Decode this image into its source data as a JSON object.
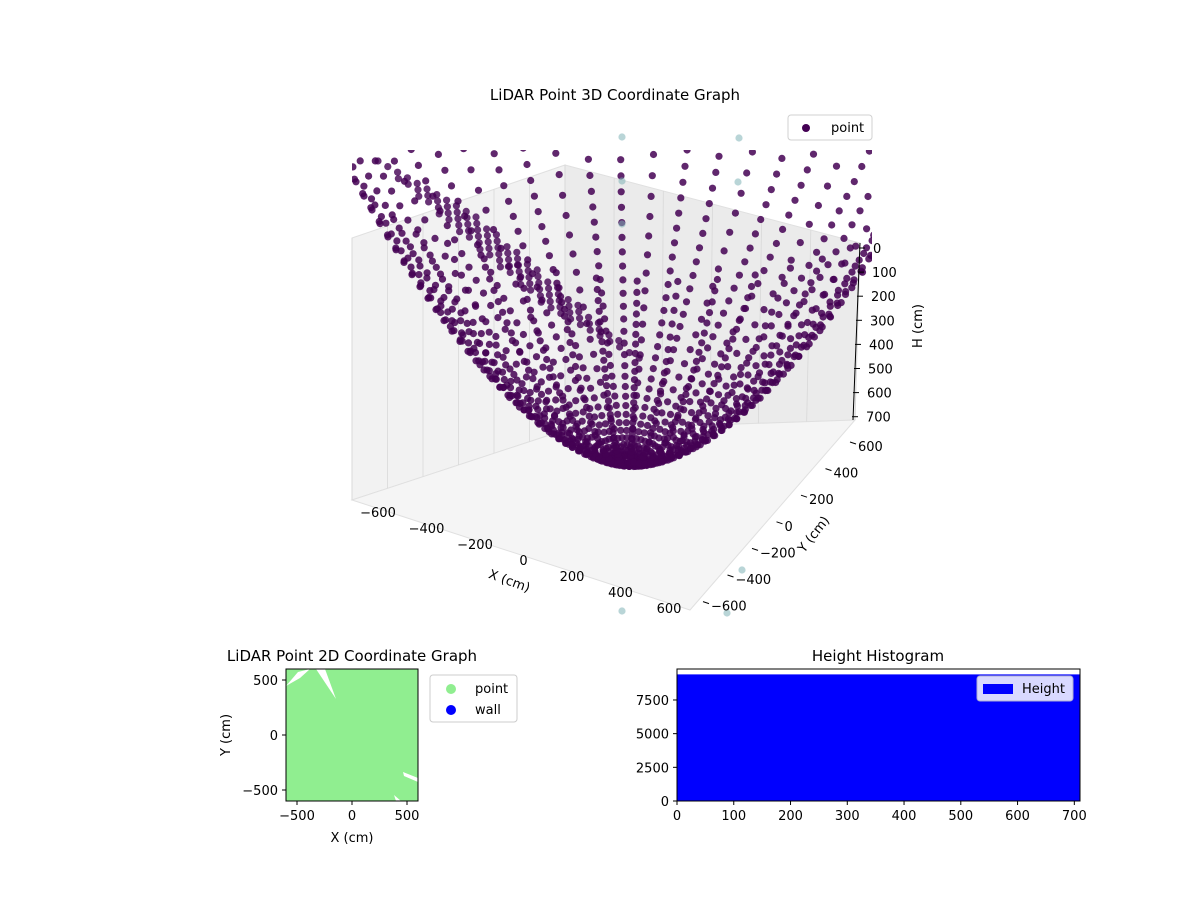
{
  "chart_data": [
    {
      "type": "scatter",
      "projection": "3d",
      "title": "LiDAR Point 3D Coordinate Graph",
      "xlabel": "X (cm)",
      "ylabel": "Y (cm)",
      "zlabel": "H (cm)",
      "xlim": [
        -650,
        650
      ],
      "ylim": [
        -650,
        650
      ],
      "zlim": [
        0,
        720
      ],
      "zaxis_inverted": true,
      "xticks": [
        "−600",
        "−400",
        "−200",
        "0",
        "200",
        "400",
        "600"
      ],
      "yticks": [
        "−600",
        "−400",
        "−200",
        "0",
        "200",
        "400",
        "600"
      ],
      "zticks": [
        "0",
        "100",
        "200",
        "300",
        "400",
        "500",
        "600",
        "700"
      ],
      "grid": true,
      "legend": {
        "position": "top-right",
        "entries": [
          {
            "label": "point",
            "color": "#440154"
          }
        ]
      },
      "series": [
        {
          "name": "point",
          "color": "#440154",
          "description_values": {
            "pattern": "dense radial curves of points fanning out from origin toward edges and upward",
            "x_range": [
              -650,
              650
            ],
            "y_range": [
              -650,
              650
            ],
            "h_range": [
              0,
              700
            ]
          }
        }
      ],
      "faint_points_color": "#7fb3b6"
    },
    {
      "type": "scatter",
      "title": "LiDAR Point 2D Coordinate Graph",
      "xlabel": "X (cm)",
      "ylabel": "Y (cm)",
      "xlim": [
        -600,
        600
      ],
      "ylim": [
        -600,
        600
      ],
      "xticks": [
        -500,
        0,
        500
      ],
      "yticks": [
        -500,
        0,
        500
      ],
      "legend": {
        "position": "outside-right",
        "entries": [
          {
            "label": "point",
            "color": "#90ee90"
          },
          {
            "label": "wall",
            "color": "#0000ff"
          }
        ]
      },
      "fill_color": "#90ee90"
    },
    {
      "type": "bar",
      "title": "Height Histogram",
      "xlim": [
        0,
        710
      ],
      "ylim": [
        0,
        9800
      ],
      "xticks": [
        0,
        100,
        200,
        300,
        400,
        500,
        600,
        700
      ],
      "yticks": [
        0,
        2500,
        5000,
        7500
      ],
      "legend": {
        "position": "top-right",
        "entries": [
          {
            "label": "Height",
            "color": "#0000ff"
          }
        ]
      },
      "series": [
        {
          "name": "Height",
          "color": "#0000ff",
          "bin_edges": [
            0,
            710
          ],
          "values": [
            9400
          ]
        }
      ]
    }
  ]
}
